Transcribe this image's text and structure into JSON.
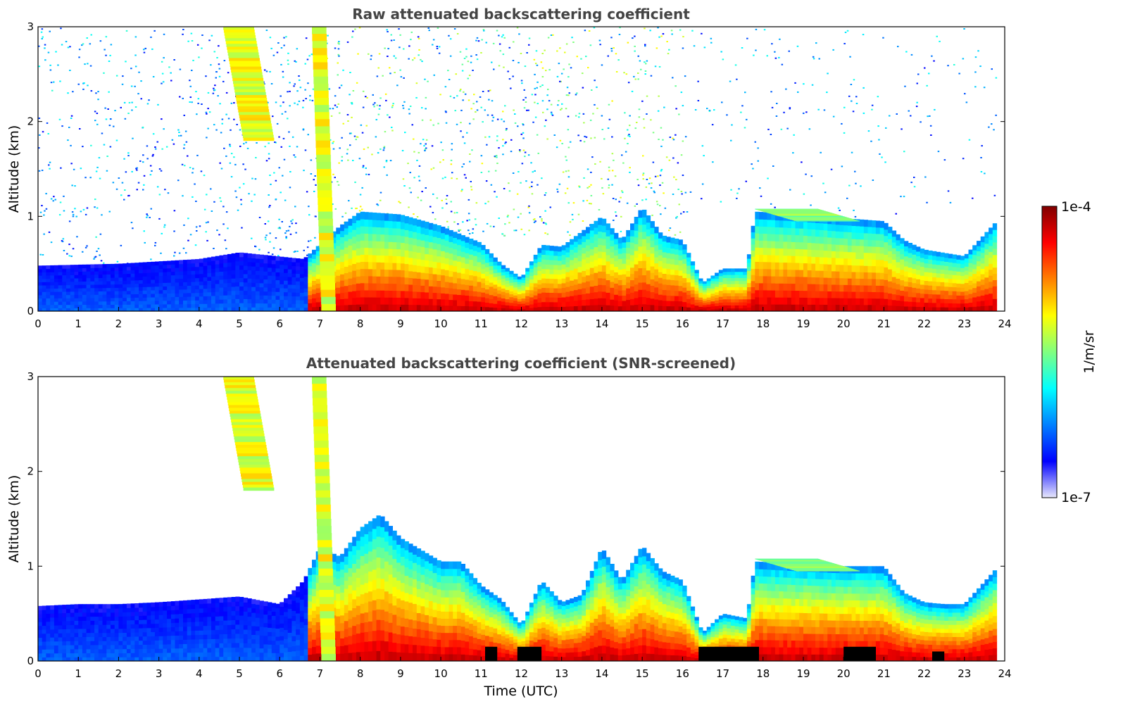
{
  "colormap": {
    "stops": [
      "#e8e8fb",
      "#0000ff",
      "#0080ff",
      "#00ffff",
      "#80ff80",
      "#ffff00",
      "#ff8000",
      "#ff0000",
      "#800000"
    ],
    "background": "#ffffff",
    "saturated_artifact_color": "#000000"
  },
  "colorbar": {
    "label": "1/m/sr",
    "top_label": "1e-4",
    "bottom_label": "1e-7",
    "min": 1e-07,
    "max": 0.0001,
    "scale": "log"
  },
  "chart_data": [
    {
      "type": "heatmap",
      "title": "Raw attenuated backscattering coefficient",
      "xlabel": "",
      "ylabel": "Altitude (km)",
      "xlim": [
        0,
        24
      ],
      "ylim": [
        0,
        3
      ],
      "xticks": [
        "0",
        "1",
        "2",
        "3",
        "4",
        "5",
        "6",
        "7",
        "8",
        "9",
        "10",
        "11",
        "12",
        "13",
        "14",
        "15",
        "16",
        "17",
        "18",
        "19",
        "20",
        "21",
        "22",
        "23",
        "24"
      ],
      "yticks": [
        "0",
        "1",
        "2",
        "3"
      ],
      "data_end_time": 23.8,
      "boundary_layer_top_km": {
        "time": [
          0,
          2,
          4,
          5,
          6.6,
          7.5,
          8,
          9,
          10,
          11,
          11.5,
          12,
          12.5,
          13,
          14,
          14.5,
          15,
          15.5,
          16,
          16.5,
          17,
          17.6,
          17.8,
          19,
          20,
          21,
          21.5,
          22,
          23,
          23.8
        ],
        "altitude": [
          0.48,
          0.5,
          0.55,
          0.62,
          0.55,
          0.9,
          1.05,
          1.02,
          0.9,
          0.72,
          0.5,
          0.35,
          0.7,
          0.68,
          1.0,
          0.75,
          1.1,
          0.8,
          0.75,
          0.3,
          0.45,
          0.45,
          1.05,
          1.02,
          0.98,
          0.95,
          0.75,
          0.65,
          0.58,
          0.95
        ]
      },
      "elevated_layers": [
        {
          "t0": 4.6,
          "t1": 6.3,
          "alt_top_km": 3.0,
          "alt_bottom_km": 1.8,
          "intensity": "high"
        },
        {
          "t0": 6.8,
          "t1": 7.6,
          "alt_top_km": 3.0,
          "alt_bottom_km": 0.0,
          "intensity": "high"
        },
        {
          "t0": 17.8,
          "t1": 21.3,
          "alt_top_km": 1.08,
          "alt_bottom_km": 0.95,
          "intensity": "medium"
        }
      ],
      "background_noise": [
        {
          "t0": 0,
          "t1": 7,
          "alt_range_km": [
            0.5,
            3
          ],
          "level": "low"
        },
        {
          "t0": 7,
          "t1": 16,
          "alt_range_km": [
            0.8,
            3
          ],
          "level": "high"
        },
        {
          "t0": 16,
          "t1": 23.8,
          "alt_range_km": [
            1.0,
            3
          ],
          "level": "sparse"
        }
      ]
    },
    {
      "type": "heatmap",
      "title": "Attenuated backscattering coefficient (SNR-screened)",
      "xlabel": "Time (UTC)",
      "ylabel": "Altitude (km)",
      "xlim": [
        0,
        24
      ],
      "ylim": [
        0,
        3
      ],
      "xticks": [
        "0",
        "1",
        "2",
        "3",
        "4",
        "5",
        "6",
        "7",
        "8",
        "9",
        "10",
        "11",
        "12",
        "13",
        "14",
        "15",
        "16",
        "17",
        "18",
        "19",
        "20",
        "21",
        "22",
        "23",
        "24"
      ],
      "yticks": [
        "0",
        "1",
        "2",
        "3"
      ],
      "data_end_time": 23.8,
      "boundary_layer_top_km": {
        "time": [
          0,
          1,
          2,
          3,
          4,
          5,
          6,
          6.6,
          7,
          7.5,
          8,
          8.5,
          9,
          10,
          10.5,
          11,
          11.5,
          12,
          12.5,
          13,
          13.5,
          14,
          14.5,
          15,
          15.5,
          16,
          16.5,
          17,
          17.6,
          17.8,
          19,
          20,
          21,
          21.5,
          22,
          22.5,
          23,
          23.8
        ],
        "altitude": [
          0.58,
          0.6,
          0.6,
          0.62,
          0.65,
          0.68,
          0.6,
          0.85,
          1.2,
          1.1,
          1.4,
          1.55,
          1.3,
          1.05,
          1.05,
          0.8,
          0.65,
          0.38,
          0.85,
          0.62,
          0.7,
          1.2,
          0.85,
          1.22,
          0.95,
          0.85,
          0.3,
          0.5,
          0.45,
          1.05,
          1.02,
          1.0,
          1.0,
          0.72,
          0.62,
          0.6,
          0.6,
          0.98
        ]
      },
      "elevated_layers": [
        {
          "t0": 4.6,
          "t1": 6.3,
          "alt_top_km": 3.0,
          "alt_bottom_km": 1.8,
          "intensity": "high"
        },
        {
          "t0": 6.8,
          "t1": 7.6,
          "alt_top_km": 3.0,
          "alt_bottom_km": 0.0,
          "intensity": "high"
        },
        {
          "t0": 17.8,
          "t1": 21.3,
          "alt_top_km": 1.08,
          "alt_bottom_km": 0.95,
          "intensity": "medium"
        }
      ],
      "saturated_segments": [
        {
          "t0": 11.1,
          "t1": 11.4,
          "alt_top_km": 0.15
        },
        {
          "t0": 11.9,
          "t1": 12.5,
          "alt_top_km": 0.15
        },
        {
          "t0": 16.4,
          "t1": 17.9,
          "alt_top_km": 0.15
        },
        {
          "t0": 20.0,
          "t1": 20.8,
          "alt_top_km": 0.15
        },
        {
          "t0": 22.2,
          "t1": 22.5,
          "alt_top_km": 0.1
        }
      ]
    }
  ]
}
